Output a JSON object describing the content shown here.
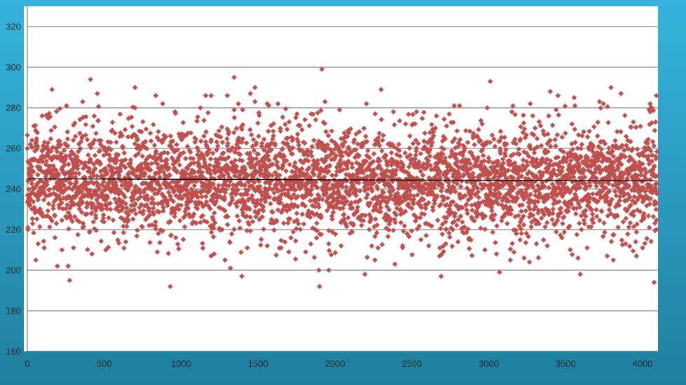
{
  "colors": {
    "frame_top": "#35b3dc",
    "frame_bottom": "#1f7f9f",
    "plot_background": "#ffffff",
    "gridline": "#3a3a3a",
    "marker": "#c0504d",
    "trendline": "#000000"
  },
  "chart_data": {
    "type": "scatter",
    "title": "",
    "xlabel": "",
    "ylabel": "",
    "xlim": [
      0,
      4100
    ],
    "ylim": [
      160,
      330
    ],
    "x_ticks": [
      "0",
      "500",
      "1000",
      "1500",
      "2000",
      "2500",
      "3000",
      "3500",
      "4000"
    ],
    "y_ticks": [
      "160",
      "180",
      "200",
      "220",
      "240",
      "260",
      "280",
      "300",
      "320"
    ],
    "grid": "horizontal",
    "legend": "none",
    "marker": "diamond",
    "point_count_estimate": 4096,
    "distribution_estimate": {
      "mean": 244.5,
      "std": 13.5,
      "min": 192,
      "max": 299
    },
    "trendline": {
      "type": "linear",
      "x": [
        0,
        4096
      ],
      "y": [
        245,
        244
      ]
    },
    "points": [
      {
        "x": 0,
        "y": 260
      },
      {
        "x": 4,
        "y": 221
      },
      {
        "x": 10,
        "y": 248
      },
      {
        "x": 30,
        "y": 264
      },
      {
        "x": 55,
        "y": 205
      },
      {
        "x": 70,
        "y": 213
      },
      {
        "x": 96,
        "y": 276
      },
      {
        "x": 110,
        "y": 211
      },
      {
        "x": 160,
        "y": 289
      },
      {
        "x": 180,
        "y": 216
      },
      {
        "x": 195,
        "y": 202
      },
      {
        "x": 225,
        "y": 210
      },
      {
        "x": 255,
        "y": 281
      },
      {
        "x": 265,
        "y": 202
      },
      {
        "x": 275,
        "y": 195
      },
      {
        "x": 300,
        "y": 211
      },
      {
        "x": 360,
        "y": 283
      },
      {
        "x": 410,
        "y": 294
      },
      {
        "x": 420,
        "y": 208
      },
      {
        "x": 455,
        "y": 287
      },
      {
        "x": 510,
        "y": 210
      },
      {
        "x": 640,
        "y": 214
      },
      {
        "x": 700,
        "y": 290
      },
      {
        "x": 700,
        "y": 280
      },
      {
        "x": 835,
        "y": 286
      },
      {
        "x": 845,
        "y": 209
      },
      {
        "x": 880,
        "y": 282
      },
      {
        "x": 930,
        "y": 192
      },
      {
        "x": 960,
        "y": 278
      },
      {
        "x": 1125,
        "y": 280
      },
      {
        "x": 1160,
        "y": 286
      },
      {
        "x": 1195,
        "y": 286
      },
      {
        "x": 1195,
        "y": 207
      },
      {
        "x": 1215,
        "y": 208
      },
      {
        "x": 1285,
        "y": 205
      },
      {
        "x": 1300,
        "y": 286
      },
      {
        "x": 1320,
        "y": 201
      },
      {
        "x": 1345,
        "y": 295
      },
      {
        "x": 1345,
        "y": 279
      },
      {
        "x": 1395,
        "y": 197
      },
      {
        "x": 1400,
        "y": 279
      },
      {
        "x": 1430,
        "y": 211
      },
      {
        "x": 1450,
        "y": 287
      },
      {
        "x": 1480,
        "y": 290
      },
      {
        "x": 1480,
        "y": 283
      },
      {
        "x": 1560,
        "y": 212
      },
      {
        "x": 1560,
        "y": 282
      },
      {
        "x": 1630,
        "y": 282
      },
      {
        "x": 1650,
        "y": 211
      },
      {
        "x": 1700,
        "y": 209
      },
      {
        "x": 1810,
        "y": 209
      },
      {
        "x": 1845,
        "y": 277
      },
      {
        "x": 1895,
        "y": 200
      },
      {
        "x": 1900,
        "y": 192
      },
      {
        "x": 1915,
        "y": 299
      },
      {
        "x": 1935,
        "y": 283
      },
      {
        "x": 1960,
        "y": 213
      },
      {
        "x": 1960,
        "y": 200
      },
      {
        "x": 2030,
        "y": 279
      },
      {
        "x": 2040,
        "y": 212
      },
      {
        "x": 2195,
        "y": 198
      },
      {
        "x": 2205,
        "y": 282
      },
      {
        "x": 2260,
        "y": 205
      },
      {
        "x": 2280,
        "y": 211
      },
      {
        "x": 2300,
        "y": 289
      },
      {
        "x": 2380,
        "y": 278
      },
      {
        "x": 2390,
        "y": 203
      },
      {
        "x": 2440,
        "y": 212
      },
      {
        "x": 2530,
        "y": 278
      },
      {
        "x": 2610,
        "y": 212
      },
      {
        "x": 2660,
        "y": 276
      },
      {
        "x": 2680,
        "y": 207
      },
      {
        "x": 2690,
        "y": 197
      },
      {
        "x": 2720,
        "y": 213
      },
      {
        "x": 2775,
        "y": 281
      },
      {
        "x": 2800,
        "y": 214
      },
      {
        "x": 2810,
        "y": 281
      },
      {
        "x": 2975,
        "y": 210
      },
      {
        "x": 2990,
        "y": 280
      },
      {
        "x": 3010,
        "y": 293
      },
      {
        "x": 3050,
        "y": 208
      },
      {
        "x": 3070,
        "y": 199
      },
      {
        "x": 3140,
        "y": 205
      },
      {
        "x": 3150,
        "y": 278
      },
      {
        "x": 3230,
        "y": 206
      },
      {
        "x": 3265,
        "y": 204
      },
      {
        "x": 3270,
        "y": 282
      },
      {
        "x": 3380,
        "y": 212
      },
      {
        "x": 3400,
        "y": 288
      },
      {
        "x": 3450,
        "y": 286
      },
      {
        "x": 3555,
        "y": 285
      },
      {
        "x": 3560,
        "y": 281
      },
      {
        "x": 3580,
        "y": 206
      },
      {
        "x": 3595,
        "y": 198
      },
      {
        "x": 3640,
        "y": 211
      },
      {
        "x": 3720,
        "y": 283
      },
      {
        "x": 3745,
        "y": 282
      },
      {
        "x": 3770,
        "y": 207
      },
      {
        "x": 3795,
        "y": 290
      },
      {
        "x": 3810,
        "y": 205
      },
      {
        "x": 3860,
        "y": 287
      },
      {
        "x": 3890,
        "y": 213
      },
      {
        "x": 3940,
        "y": 273
      },
      {
        "x": 3960,
        "y": 207
      },
      {
        "x": 4000,
        "y": 211
      },
      {
        "x": 4050,
        "y": 278
      },
      {
        "x": 4075,
        "y": 194
      },
      {
        "x": 4085,
        "y": 273
      },
      {
        "x": 4090,
        "y": 286
      },
      {
        "x": 4090,
        "y": 220
      }
    ]
  }
}
